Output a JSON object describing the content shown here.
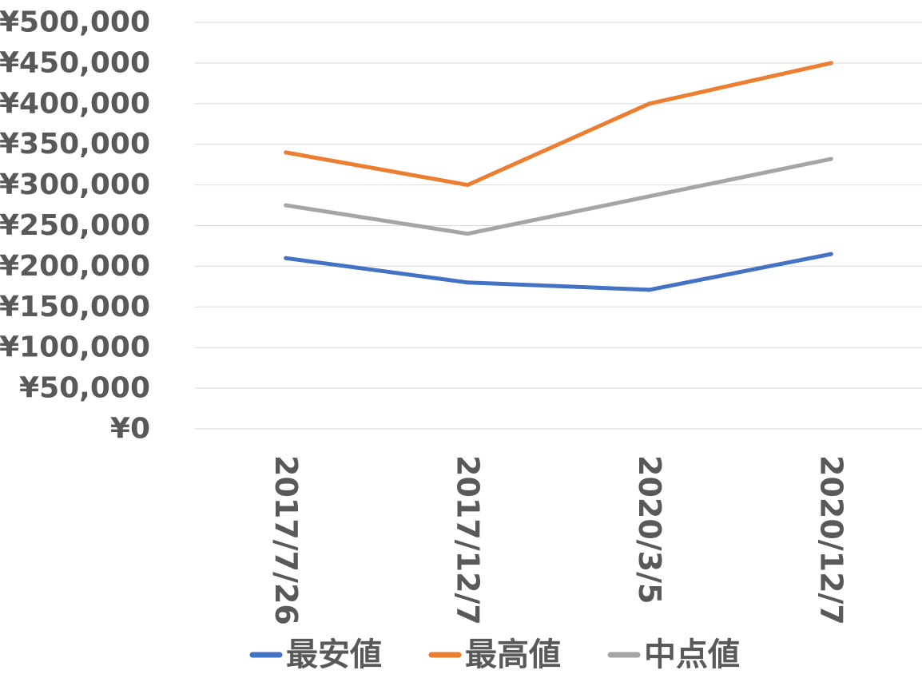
{
  "chart_data": {
    "type": "line",
    "categories": [
      "2017/7/26",
      "2017/12/7",
      "2020/3/5",
      "2020/12/7"
    ],
    "ylim": [
      0,
      500000
    ],
    "y_ticks": [
      {
        "value": 0,
        "label": "¥0"
      },
      {
        "value": 50000,
        "label": "¥50,000"
      },
      {
        "value": 100000,
        "label": "¥100,000"
      },
      {
        "value": 150000,
        "label": "¥150,000"
      },
      {
        "value": 200000,
        "label": "¥200,000"
      },
      {
        "value": 250000,
        "label": "¥250,000"
      },
      {
        "value": 300000,
        "label": "¥300,000"
      },
      {
        "value": 350000,
        "label": "¥350,000"
      },
      {
        "value": 400000,
        "label": "¥400,000"
      },
      {
        "value": 450000,
        "label": "¥450,000"
      },
      {
        "value": 500000,
        "label": "¥500,000"
      }
    ],
    "grid": true,
    "legend_position": "bottom",
    "series": [
      {
        "name": "最安値",
        "color": "#4472c4",
        "values": [
          210000,
          180000,
          171000,
          215000
        ]
      },
      {
        "name": "最高値",
        "color": "#ed7d31",
        "values": [
          340000,
          300000,
          400000,
          450000
        ]
      },
      {
        "name": "中点値",
        "color": "#a5a5a5",
        "values": [
          275000,
          240000,
          286000,
          332000
        ]
      }
    ]
  }
}
